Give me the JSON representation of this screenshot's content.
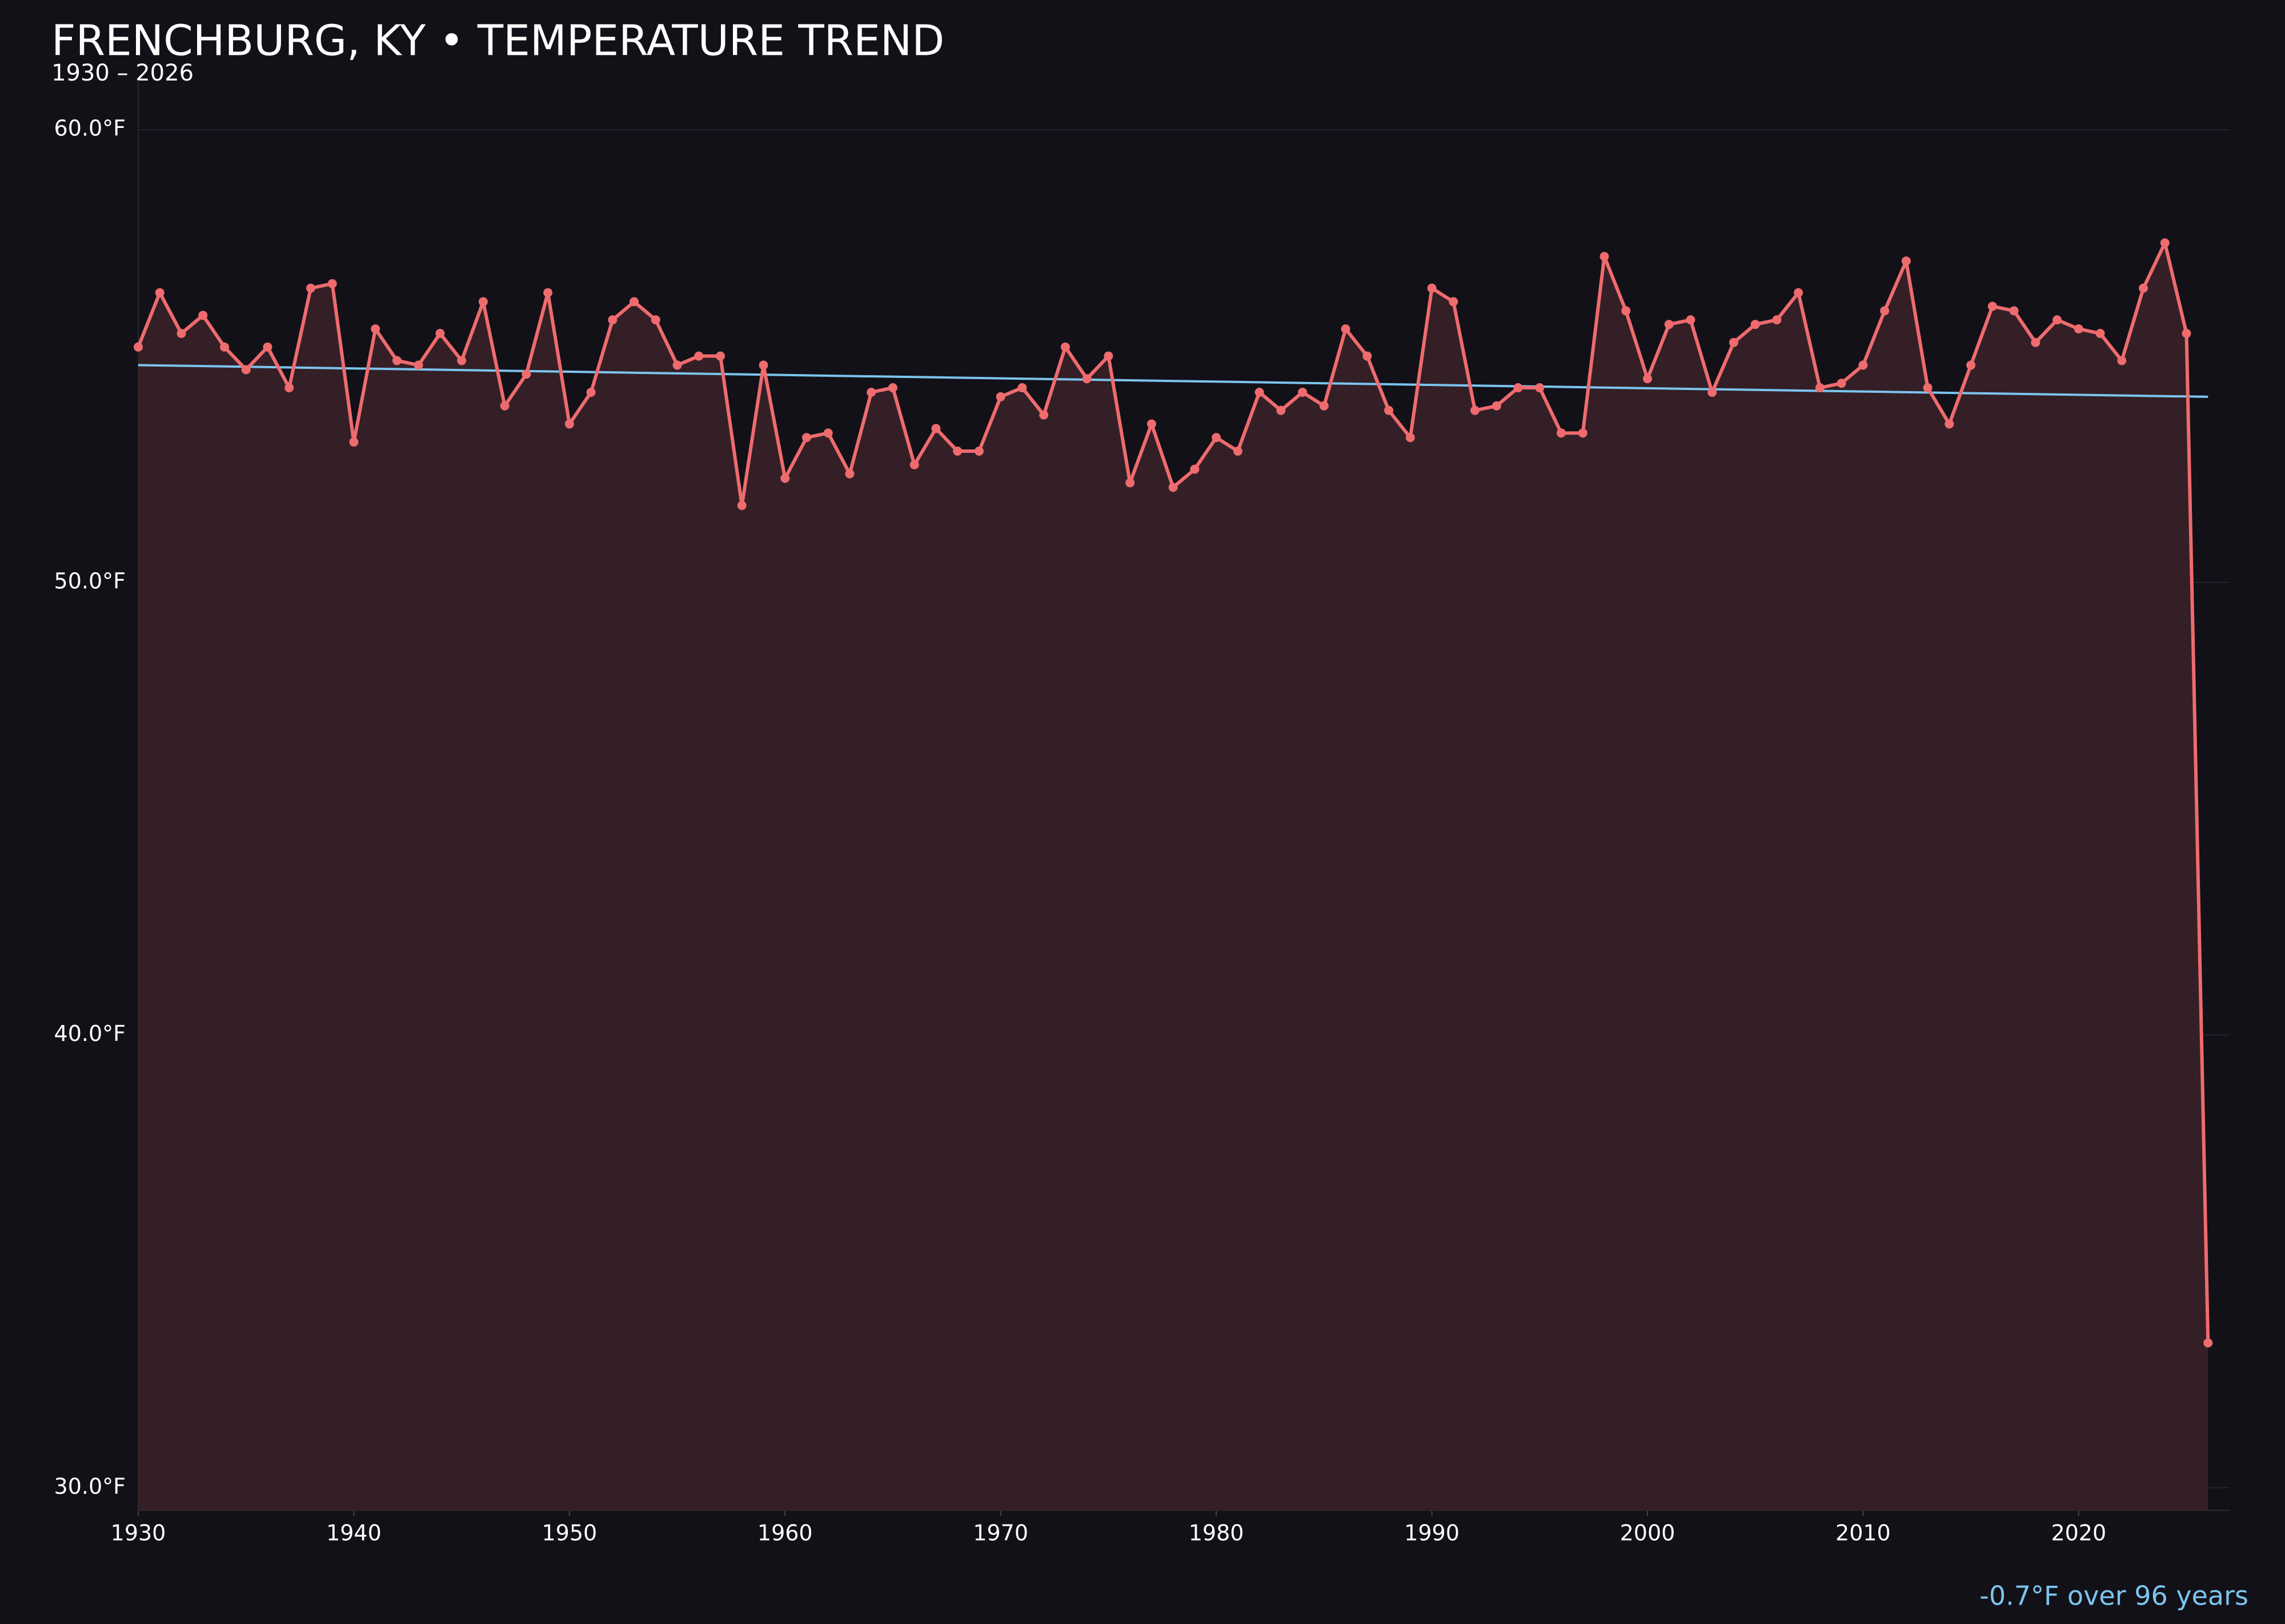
{
  "chart_data": {
    "type": "line",
    "title": "FRENCHBURG, KY • TEMPERATURE TREND",
    "subtitle": "1930 – 2026",
    "x": [
      1930,
      1931,
      1932,
      1933,
      1934,
      1935,
      1936,
      1937,
      1938,
      1939,
      1940,
      1941,
      1942,
      1943,
      1944,
      1945,
      1946,
      1947,
      1948,
      1949,
      1950,
      1951,
      1952,
      1953,
      1954,
      1955,
      1956,
      1957,
      1958,
      1959,
      1960,
      1961,
      1962,
      1963,
      1964,
      1965,
      1966,
      1967,
      1968,
      1969,
      1970,
      1971,
      1972,
      1973,
      1974,
      1975,
      1976,
      1977,
      1978,
      1979,
      1980,
      1981,
      1982,
      1983,
      1984,
      1985,
      1986,
      1987,
      1988,
      1989,
      1990,
      1991,
      1992,
      1993,
      1994,
      1995,
      1996,
      1997,
      1998,
      1999,
      2000,
      2001,
      2002,
      2003,
      2004,
      2005,
      2006,
      2007,
      2008,
      2009,
      2010,
      2011,
      2012,
      2013,
      2014,
      2015,
      2016,
      2017,
      2018,
      2019,
      2020,
      2021,
      2022,
      2023,
      2024,
      2025,
      2026
    ],
    "series": [
      {
        "color": "#ee6b6e",
        "values": [
          55.2,
          56.4,
          55.5,
          55.9,
          55.2,
          54.7,
          55.2,
          54.3,
          56.5,
          56.6,
          53.1,
          55.6,
          54.9,
          54.8,
          55.5,
          54.9,
          56.2,
          53.9,
          54.6,
          56.4,
          53.5,
          54.2,
          55.8,
          56.2,
          55.8,
          54.8,
          55.0,
          55.0,
          51.7,
          54.8,
          52.3,
          53.2,
          53.3,
          52.4,
          54.2,
          54.3,
          52.6,
          53.4,
          52.9,
          52.9,
          54.1,
          54.3,
          53.7,
          55.2,
          54.5,
          55.0,
          52.2,
          53.5,
          52.1,
          52.5,
          53.2,
          52.9,
          54.2,
          53.8,
          54.2,
          53.9,
          55.6,
          55.0,
          53.8,
          53.2,
          56.5,
          56.2,
          53.8,
          53.9,
          54.3,
          54.3,
          53.3,
          53.3,
          57.2,
          56.0,
          54.5,
          55.7,
          55.8,
          54.2,
          55.3,
          55.7,
          55.8,
          56.4,
          54.3,
          54.4,
          54.8,
          56.0,
          57.1,
          54.3,
          53.5,
          54.8,
          56.1,
          56.0,
          55.3,
          55.8,
          55.6,
          55.5,
          54.9,
          56.5,
          57.5,
          55.5,
          33.2
        ]
      }
    ],
    "trend": {
      "x": [
        1930,
        2026
      ],
      "values": [
        54.8,
        54.1
      ],
      "color": "#7cc4ee",
      "label": "-0.7°F over 96 years"
    },
    "xlim": [
      1930,
      2027
    ],
    "ylim": [
      29.5,
      61.1
    ],
    "xticks": [
      1930,
      1940,
      1950,
      1960,
      1970,
      1980,
      1990,
      2000,
      2010,
      2020
    ],
    "yticks": [
      {
        "value": 30,
        "label": "30.0°F"
      },
      {
        "value": 40,
        "label": "40.0°F"
      },
      {
        "value": 50,
        "label": "50.0°F"
      },
      {
        "value": 60,
        "label": "60.0°F"
      }
    ],
    "grid": true
  }
}
